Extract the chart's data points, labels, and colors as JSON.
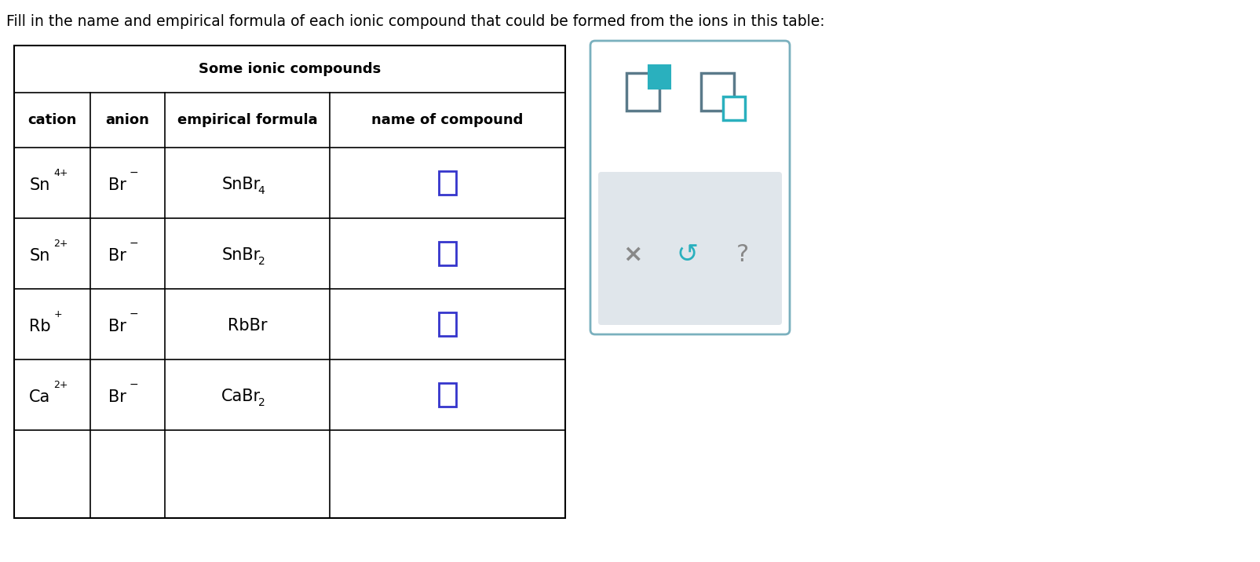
{
  "title_text": "Fill in the name and empirical formula of each ionic compound that could be formed from the ions in this table:",
  "table_title": "Some ionic compounds",
  "header_row": [
    "cation",
    "anion",
    "empirical formula",
    "name of compound"
  ],
  "rows": [
    {
      "cation": "Sn",
      "cation_charge": "4+",
      "anion": "Br",
      "anion_charge": "−",
      "formula_base": "SnBr",
      "formula_sub": "4"
    },
    {
      "cation": "Sn",
      "cation_charge": "2+",
      "anion": "Br",
      "anion_charge": "−",
      "formula_base": "SnBr",
      "formula_sub": "2"
    },
    {
      "cation": "Rb",
      "cation_charge": "+",
      "anion": "Br",
      "anion_charge": "−",
      "formula_base": "RbBr",
      "formula_sub": ""
    },
    {
      "cation": "Ca",
      "cation_charge": "2+",
      "anion": "Br",
      "anion_charge": "−",
      "formula_base": "CaBr",
      "formula_sub": "2"
    }
  ],
  "title_color": "#000000",
  "header_color": "#000000",
  "cell_text_color": "#000000",
  "formula_color": "#000000",
  "checkbox_color": "#3535cc",
  "table_line_color": "#000000",
  "bg_color": "#ffffff",
  "panel_border": "#7ab0be",
  "panel_grey": "#e0e6eb",
  "icon_teal_fill": "#2ab0be",
  "icon_grey": "#5a7a8a",
  "icon_teal_border": "#2ab0be",
  "x_color": "#888888",
  "undo_color": "#2ab0be",
  "q_color": "#888888"
}
